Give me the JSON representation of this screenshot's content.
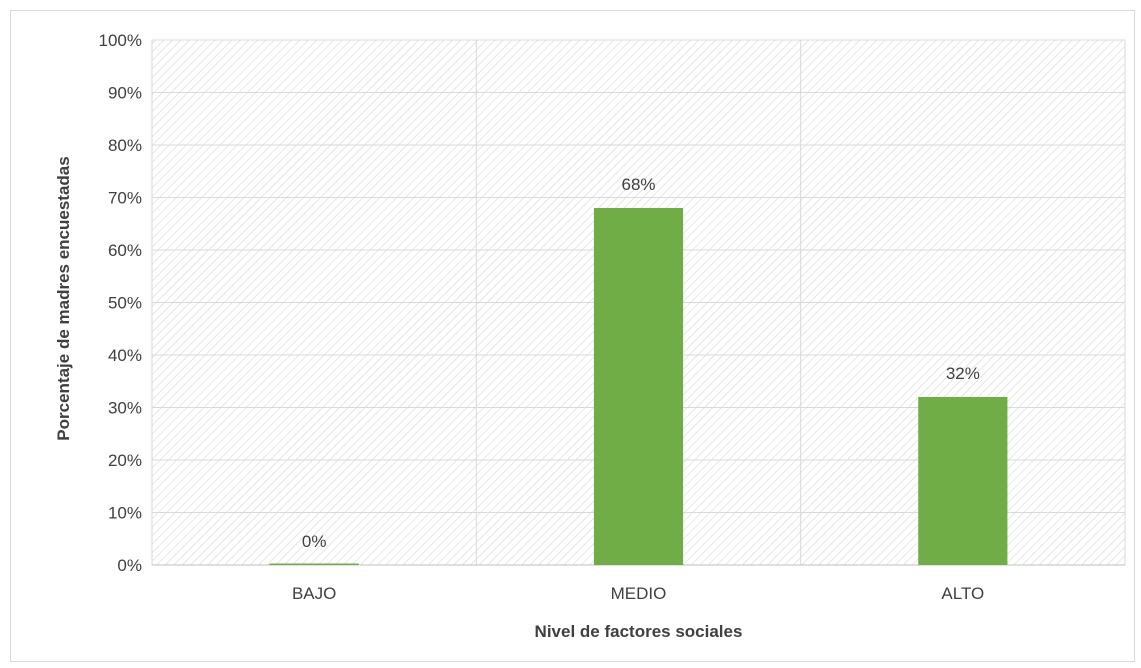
{
  "chart_data": {
    "type": "bar",
    "categories": [
      "BAJO",
      "MEDIO",
      "ALTO"
    ],
    "values": [
      0,
      68,
      32
    ],
    "data_labels": [
      "0%",
      "68%",
      "32%"
    ],
    "title": "",
    "xlabel": "Nivel de factores sociales",
    "ylabel": "Porcentaje de madres encuestadas",
    "ylim": [
      0,
      100
    ],
    "y_ticks": [
      "0%",
      "10%",
      "20%",
      "30%",
      "40%",
      "50%",
      "60%",
      "70%",
      "80%",
      "90%",
      "100%"
    ],
    "grid": true,
    "legend": "none",
    "bar_color": "#70ad47",
    "plot_pattern": "diagonal-hatch"
  }
}
